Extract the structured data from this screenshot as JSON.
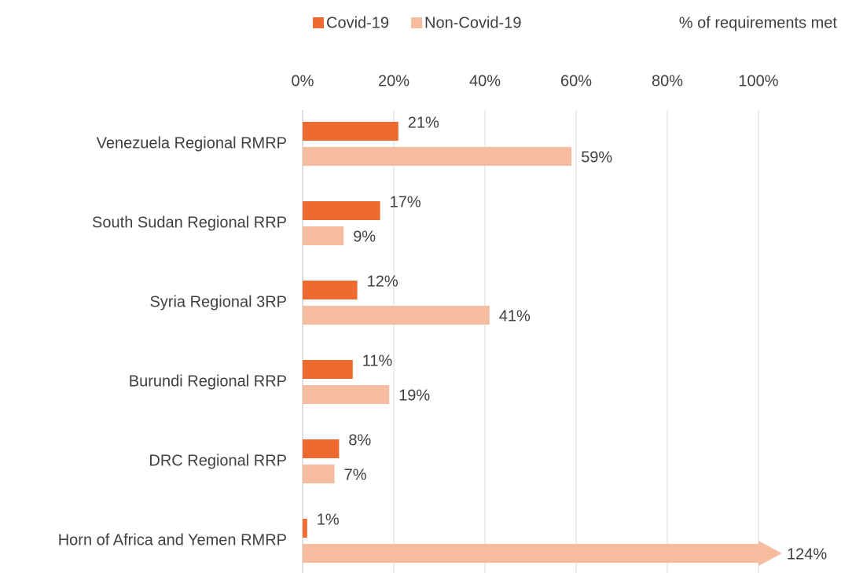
{
  "chart_data": {
    "type": "hbar",
    "axis_label": "% of requirements met",
    "categories": [
      "Venezuela Regional RMRP",
      "South Sudan Regional RRP",
      "Syria Regional 3RP",
      "Burundi Regional RRP",
      "DRC Regional RRP",
      "Horn of Africa and Yemen RMRP"
    ],
    "series": [
      {
        "name": "Covid-19",
        "color": "#ee6a2f",
        "values": [
          21,
          17,
          12,
          11,
          8,
          1
        ],
        "value_labels": [
          "21%",
          "17%",
          "12%",
          "11%",
          "8%",
          "1%"
        ]
      },
      {
        "name": "Non-Covid-19",
        "color": "#f6bca0",
        "values": [
          59,
          9,
          41,
          19,
          7,
          124
        ],
        "value_labels": [
          "59%",
          "9%",
          "41%",
          "19%",
          "7%",
          "124%"
        ]
      }
    ],
    "xlim": [
      0,
      100
    ],
    "xticks": [
      {
        "value": 0,
        "label": "0%"
      },
      {
        "value": 20,
        "label": "20%"
      },
      {
        "value": 40,
        "label": "40%"
      },
      {
        "value": 60,
        "label": "60%"
      },
      {
        "value": 80,
        "label": "80%"
      },
      {
        "value": 100,
        "label": "100%"
      }
    ],
    "grid": true,
    "legend": "top"
  }
}
